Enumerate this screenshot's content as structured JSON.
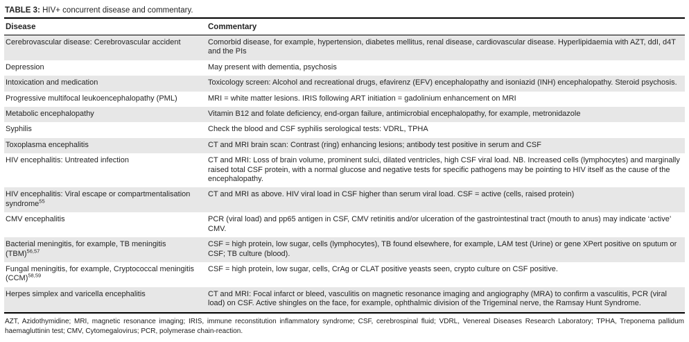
{
  "title": {
    "label": "TABLE 3:",
    "text": " HIV+ concurrent disease and commentary."
  },
  "colors": {
    "row_shade": "#e7e7e7",
    "rule": "#000000"
  },
  "table": {
    "columns": {
      "disease": "Disease",
      "commentary": "Commentary"
    },
    "rows": [
      {
        "disease": "Cerebrovascular disease: Cerebrovascular accident",
        "commentary": "Comorbid disease, for example, hypertension, diabetes mellitus, renal disease, cardiovascular disease. Hyperlipidaemia with AZT, ddI, d4T and the PIs"
      },
      {
        "disease": "Depression",
        "commentary": "May present with dementia, psychosis"
      },
      {
        "disease": "Intoxication and medication",
        "commentary": "Toxicology screen: Alcohol and recreational drugs, efavirenz (EFV) encephalopathy and isoniazid (INH) encephalopathy. Steroid psychosis."
      },
      {
        "disease": "Progressive multifocal leukoencephalopathy (PML)",
        "commentary": "MRI = white matter lesions. IRIS following ART initiation = gadolinium enhancement on MRI"
      },
      {
        "disease": "Metabolic encephalopathy",
        "commentary": "Vitamin B12 and folate deficiency, end-organ failure, antimicrobial encephalopathy, for example, metronidazole"
      },
      {
        "disease": "Syphilis",
        "commentary": "Check the blood and CSF syphilis serological tests: VDRL, TPHA"
      },
      {
        "disease": "Toxoplasma encephalitis",
        "commentary": "CT and MRI brain scan: Contrast (ring) enhancing lesions; antibody test positive in serum and CSF"
      },
      {
        "disease": "HIV encephalitis: Untreated infection",
        "commentary": "CT and MRI: Loss of brain volume, prominent sulci, dilated ventricles, high CSF viral load. NB. Increased cells (lymphocytes) and marginally raised total CSF protein, with a normal glucose and negative tests for specific pathogens may be pointing to HIV itself as the cause of the encephalopathy."
      },
      {
        "disease": "HIV encephalitis: Viral escape or compartmentalisation syndrome",
        "disease_sup": "55",
        "commentary": "CT and MRI as above. HIV viral load in CSF higher than serum viral load. CSF = active (cells, raised protein)"
      },
      {
        "disease": "CMV encephalitis",
        "commentary": "PCR (viral load) and pp65 antigen in CSF, CMV retinitis and/or ulceration of the gastrointestinal tract (mouth to anus) may indicate ‘active’ CMV."
      },
      {
        "disease": "Bacterial meningitis, for example, TB meningitis (TBM)",
        "disease_sup": "56,57",
        "commentary": "CSF = high protein, low sugar, cells (lymphocytes), TB found elsewhere, for example, LAM test (Urine) or gene XPert positive on sputum or CSF; TB culture (blood)."
      },
      {
        "disease": "Fungal meningitis, for example, Cryptococcal meningitis (CCM)",
        "disease_sup": "58,59",
        "commentary": "CSF = high protein, low sugar, cells, CrAg or CLAT positive yeasts seen, crypto culture on CSF positive."
      },
      {
        "disease": "Herpes simplex and varicella encephalitis",
        "commentary": "CT and MRI: Focal infarct or bleed, vasculitis on magnetic resonance imaging and angiography (MRA) to confirm a vasculitis, PCR (viral load) on CSF. Active shingles on the face, for example, ophthalmic division of the Trigeminal nerve, the Ramsay Hunt Syndrome."
      }
    ]
  },
  "footnote": "AZT, Azidothymidine; MRI, magnetic resonance imaging; IRIS, immune reconstitution inflammatory syndrome; CSF, cerebrospinal fluid; VDRL, Venereal Diseases Research Laboratory; TPHA, Treponema pallidum haemagluttinin test; CMV, Cytomegalovirus; PCR, polymerase chain-reaction."
}
